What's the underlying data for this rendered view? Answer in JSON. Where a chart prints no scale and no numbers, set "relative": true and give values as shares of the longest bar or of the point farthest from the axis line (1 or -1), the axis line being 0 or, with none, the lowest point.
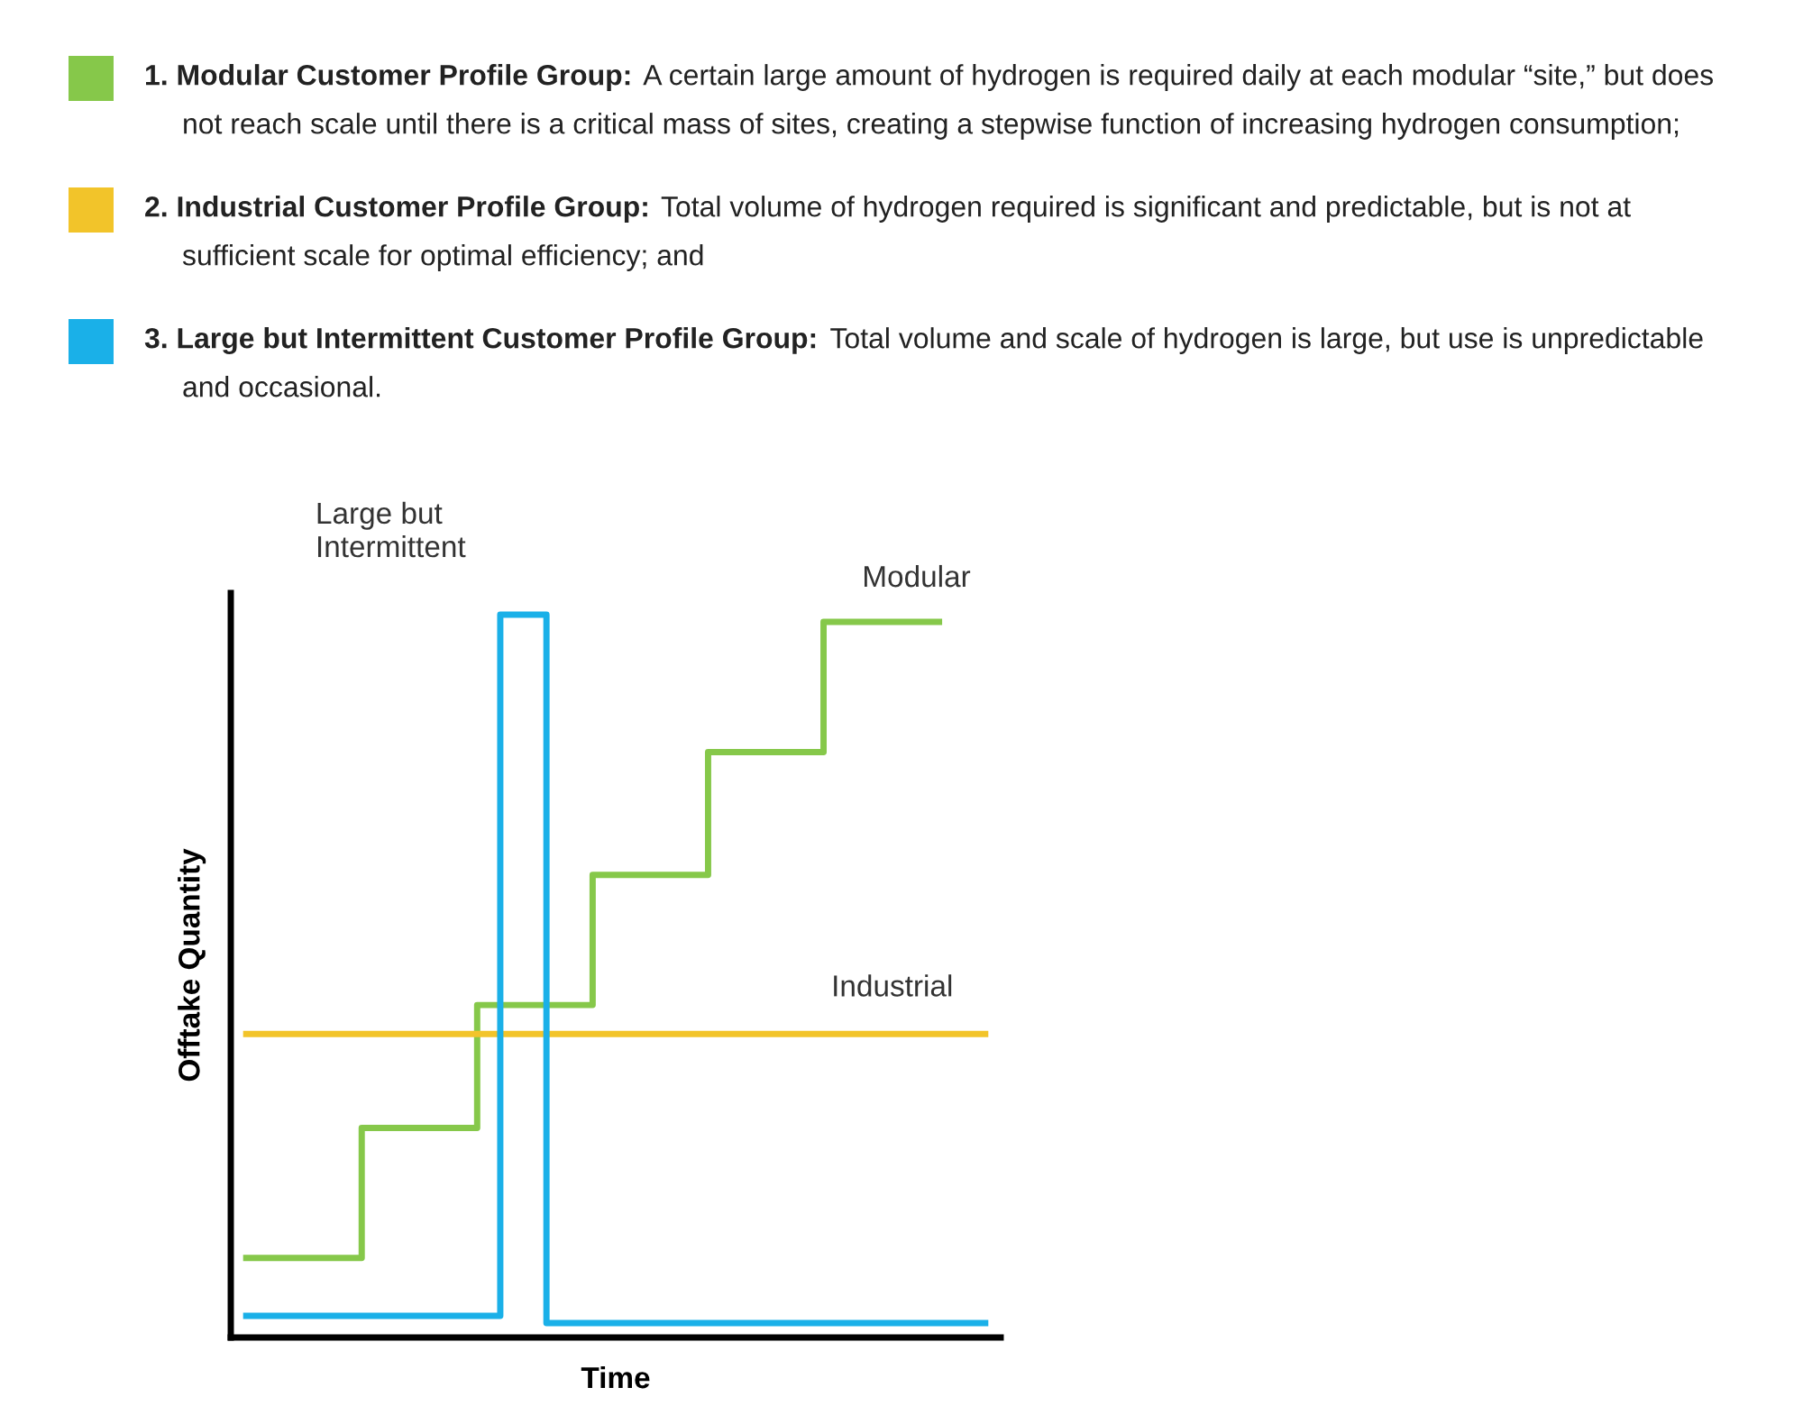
{
  "chart_data": {
    "type": "step",
    "relative": true,
    "xlabel": "Time",
    "ylabel": "Offtake Quantity",
    "categories": [
      null,
      null,
      null,
      null,
      null,
      null,
      null,
      null,
      null,
      null,
      null,
      null,
      null,
      null,
      null,
      null,
      null,
      null,
      null,
      null,
      null,
      null,
      null,
      null,
      null,
      null,
      null,
      null,
      null,
      null,
      null,
      null,
      null
    ],
    "series": [
      {
        "name": "Modular",
        "color": "#86c84a",
        "values": [
          0.11,
          0.11,
          0.11,
          0.11,
          0.11,
          0.29,
          0.29,
          0.29,
          0.29,
          0.29,
          0.46,
          0.46,
          0.46,
          0.46,
          0.46,
          0.64,
          0.64,
          0.64,
          0.64,
          0.64,
          0.81,
          0.81,
          0.81,
          0.81,
          0.81,
          0.99,
          0.99,
          0.99,
          0.99,
          0.99,
          0.99,
          null,
          null
        ]
      },
      {
        "name": "Industrial",
        "color": "#f2c42a",
        "values": [
          0.42,
          0.42,
          0.42,
          0.42,
          0.42,
          0.42,
          0.42,
          0.42,
          0.42,
          0.42,
          0.42,
          0.42,
          0.42,
          0.42,
          0.42,
          0.42,
          0.42,
          0.42,
          0.42,
          0.42,
          0.42,
          0.42,
          0.42,
          0.42,
          0.42,
          0.42,
          0.42,
          0.42,
          0.42,
          0.42,
          0.42,
          0.42,
          0.42
        ]
      },
      {
        "name": "Large but\nIntermittent",
        "color": "#1ab0e8",
        "values": [
          0.03,
          0.03,
          0.03,
          0.03,
          0.03,
          0.03,
          0.03,
          0.03,
          0.03,
          0.03,
          0.03,
          1,
          1,
          0.02,
          0.02,
          0.02,
          0.02,
          0.02,
          0.02,
          0.02,
          0.02,
          0.02,
          0.02,
          0.02,
          0.02,
          0.02,
          0.02,
          0.02,
          0.02,
          0.02,
          0.02,
          0.02,
          0.02
        ]
      }
    ],
    "annotations": [
      "1. Modular Customer Profile Group:",
      "A certain large amount of hydrogen is required daily at each modular “site,” but does not reach scale until there is a critical mass of sites, creating a stepwise function of increasing hydrogen consumption;",
      "2. Industrial Customer Profile Group:",
      "Total volume of hydrogen required is significant and predictable, but is not at sufficient scale for optimal efficiency; and",
      "3. Large but Intermittent Customer Profile Group:",
      "Total volume and scale of hydrogen is large, but use is unpredictable and occasional."
    ]
  }
}
